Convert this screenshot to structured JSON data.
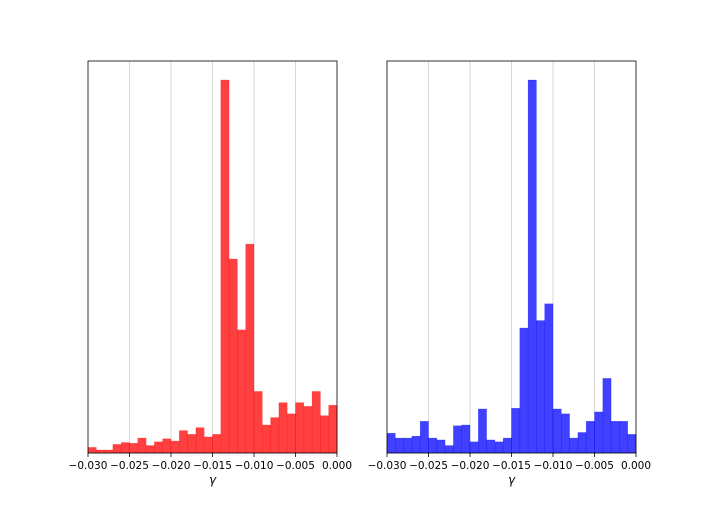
{
  "chart_data": [
    {
      "type": "bar",
      "subtype": "histogram",
      "color": "#ff0000",
      "xlabel": "γ",
      "ylabel": "",
      "xlim": [
        -0.03,
        0.0
      ],
      "ylim": [
        0,
        100
      ],
      "grid": "vertical",
      "yticks_visible": false,
      "xticks": [
        -0.03,
        -0.025,
        -0.02,
        -0.015,
        -0.01,
        -0.005,
        0.0
      ],
      "xtick_labels": [
        "−0.030",
        "−0.025",
        "−0.020",
        "−0.015",
        "−0.010",
        "−0.005",
        "0.000"
      ],
      "bin_width": 0.001,
      "bin_starts": [
        -0.03,
        -0.029,
        -0.028,
        -0.027,
        -0.026,
        -0.025,
        -0.024,
        -0.023,
        -0.022,
        -0.021,
        -0.02,
        -0.019,
        -0.018,
        -0.017,
        -0.016,
        -0.015,
        -0.014,
        -0.013,
        -0.012,
        -0.011,
        -0.01,
        -0.009,
        -0.008,
        -0.007,
        -0.006,
        -0.005,
        -0.004,
        -0.003,
        -0.002,
        -0.001
      ],
      "values": [
        1.5,
        0.8,
        0.8,
        2.3,
        2.8,
        2.6,
        4.0,
        2.0,
        3.0,
        3.8,
        3.2,
        6.0,
        5.0,
        6.8,
        4.3,
        5.0,
        100,
        52,
        33,
        56,
        16.5,
        7.5,
        9.5,
        13.5,
        10.5,
        13.5,
        12.5,
        16.5,
        10.0,
        12.8
      ]
    },
    {
      "type": "bar",
      "subtype": "histogram",
      "color": "#0000ff",
      "xlabel": "γ",
      "ylabel": "",
      "xlim": [
        -0.03,
        0.0
      ],
      "ylim": [
        0,
        100
      ],
      "grid": "vertical",
      "yticks_visible": false,
      "xticks": [
        -0.03,
        -0.025,
        -0.02,
        -0.015,
        -0.01,
        -0.005,
        0.0
      ],
      "xtick_labels": [
        "−0.030",
        "−0.025",
        "−0.020",
        "−0.015",
        "−0.010",
        "−0.005",
        "0.000"
      ],
      "bin_width": 0.001,
      "bin_starts": [
        -0.03,
        -0.029,
        -0.028,
        -0.027,
        -0.026,
        -0.025,
        -0.024,
        -0.023,
        -0.022,
        -0.021,
        -0.02,
        -0.019,
        -0.018,
        -0.017,
        -0.016,
        -0.015,
        -0.014,
        -0.013,
        -0.012,
        -0.011,
        -0.01,
        -0.009,
        -0.008,
        -0.007,
        -0.006,
        -0.005,
        -0.004,
        -0.003,
        -0.002,
        -0.001
      ],
      "values": [
        5.3,
        4.0,
        4.0,
        4.5,
        8.5,
        4.0,
        3.5,
        2.0,
        7.3,
        7.5,
        3.0,
        11.8,
        3.5,
        3.0,
        4.0,
        12.0,
        33.5,
        100,
        35.5,
        40.0,
        11.8,
        10.5,
        4.0,
        5.5,
        8.5,
        11.0,
        20.0,
        8.5,
        8.5,
        5.0
      ]
    }
  ]
}
